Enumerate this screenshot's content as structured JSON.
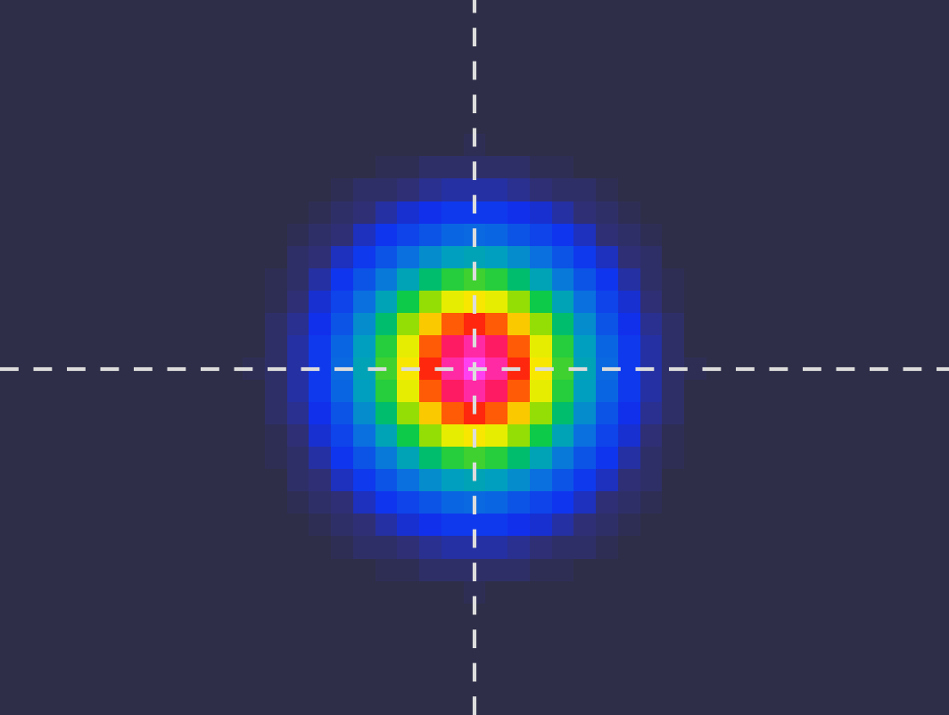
{
  "chart_data": {
    "type": "heatmap",
    "tick_labels": false,
    "cells": [
      [
        0,
        0,
        0,
        0,
        0,
        0,
        0,
        0,
        0,
        0,
        0,
        0,
        0,
        0,
        0,
        0,
        0,
        0,
        0,
        0,
        0,
        0,
        0,
        0,
        0,
        0,
        0,
        0,
        0,
        0,
        0,
        0,
        0,
        0,
        0,
        0,
        0,
        0,
        0,
        0,
        0,
        0,
        0
      ],
      [
        0,
        0,
        0,
        0,
        0,
        0,
        0,
        0,
        0,
        0,
        0,
        0,
        0,
        0,
        0,
        0,
        0,
        0,
        0,
        0,
        0,
        0,
        0,
        0,
        0,
        0,
        0,
        0,
        0,
        0,
        0,
        0,
        0,
        0,
        0,
        0,
        0,
        0,
        0,
        0,
        0,
        0,
        0
      ],
      [
        0,
        0,
        0,
        0,
        0,
        0,
        0,
        0,
        0,
        0,
        0,
        0,
        0,
        0,
        0,
        0,
        0,
        0,
        0,
        0,
        0,
        0,
        0,
        0,
        0,
        0,
        0,
        0,
        0,
        0,
        0,
        0,
        0,
        0,
        0,
        0,
        0,
        0,
        0,
        0,
        0,
        0,
        0
      ],
      [
        0,
        0,
        0,
        0,
        0,
        0,
        0,
        0,
        0,
        0,
        0,
        0,
        0,
        0,
        0,
        0,
        0,
        0,
        0,
        0,
        0,
        0,
        0,
        0,
        0,
        0,
        0,
        0,
        0,
        0,
        0,
        0,
        0,
        0,
        0,
        0,
        0,
        0,
        0,
        0,
        0,
        0,
        0
      ],
      [
        0,
        0,
        0,
        0,
        0,
        0,
        0,
        0,
        0,
        0,
        0,
        0,
        0,
        0,
        0,
        0,
        0,
        0,
        0,
        0,
        0,
        0,
        0,
        0,
        0,
        0,
        0,
        0,
        0,
        0,
        0,
        0,
        0,
        0,
        0,
        0,
        0,
        0,
        0,
        0,
        0,
        0,
        0
      ],
      [
        0,
        0,
        0,
        0,
        0,
        0,
        0,
        0,
        0,
        0,
        0,
        0,
        0,
        0,
        0,
        0,
        0,
        0,
        0,
        0,
        0,
        0,
        0,
        0,
        0,
        0,
        0,
        0,
        0,
        0,
        0,
        0,
        0,
        0,
        0,
        0,
        0,
        0,
        0,
        0,
        0,
        0,
        0
      ],
      [
        0,
        0,
        0,
        0,
        0,
        0,
        0,
        0,
        0,
        0,
        0,
        0,
        0,
        0,
        0,
        0,
        0,
        0,
        0,
        0,
        0,
        1,
        0,
        0,
        0,
        0,
        0,
        0,
        0,
        0,
        0,
        0,
        0,
        0,
        0,
        0,
        0,
        0,
        0,
        0,
        0,
        0,
        0
      ],
      [
        0,
        0,
        0,
        0,
        0,
        0,
        0,
        0,
        0,
        0,
        0,
        0,
        0,
        0,
        0,
        0,
        0,
        1,
        1,
        2,
        2,
        2,
        2,
        2,
        1,
        1,
        0,
        0,
        0,
        0,
        0,
        0,
        0,
        0,
        0,
        0,
        0,
        0,
        0,
        0,
        0,
        0,
        0
      ],
      [
        0,
        0,
        0,
        0,
        0,
        0,
        0,
        0,
        0,
        0,
        0,
        0,
        0,
        0,
        0,
        1,
        2,
        2,
        3,
        4,
        5,
        5,
        5,
        4,
        3,
        2,
        2,
        1,
        0,
        0,
        0,
        0,
        0,
        0,
        0,
        0,
        0,
        0,
        0,
        0,
        0,
        0,
        0
      ],
      [
        0,
        0,
        0,
        0,
        0,
        0,
        0,
        0,
        0,
        0,
        0,
        0,
        0,
        0,
        1,
        2,
        3,
        5,
        7,
        8,
        10,
        10,
        10,
        8,
        7,
        5,
        3,
        2,
        1,
        0,
        0,
        0,
        0,
        0,
        0,
        0,
        0,
        0,
        0,
        0,
        0,
        0,
        0
      ],
      [
        0,
        0,
        0,
        0,
        0,
        0,
        0,
        0,
        0,
        0,
        0,
        0,
        0,
        1,
        2,
        3,
        6,
        9,
        12,
        15,
        18,
        19,
        18,
        15,
        12,
        9,
        6,
        3,
        2,
        1,
        0,
        0,
        0,
        0,
        0,
        0,
        0,
        0,
        0,
        0,
        0,
        0,
        0
      ],
      [
        0,
        0,
        0,
        0,
        0,
        0,
        0,
        0,
        0,
        0,
        0,
        0,
        0,
        2,
        3,
        6,
        10,
        15,
        20,
        26,
        30,
        31,
        30,
        26,
        20,
        15,
        10,
        6,
        3,
        2,
        0,
        0,
        0,
        0,
        0,
        0,
        0,
        0,
        0,
        0,
        0,
        0,
        0
      ],
      [
        0,
        0,
        0,
        0,
        0,
        0,
        0,
        0,
        0,
        0,
        0,
        0,
        1,
        2,
        5,
        9,
        15,
        22,
        31,
        39,
        45,
        47,
        45,
        39,
        31,
        22,
        15,
        9,
        5,
        2,
        1,
        0,
        0,
        0,
        0,
        0,
        0,
        0,
        0,
        0,
        0,
        0,
        0
      ],
      [
        0,
        0,
        0,
        0,
        0,
        0,
        0,
        0,
        0,
        0,
        0,
        0,
        1,
        3,
        7,
        12,
        20,
        31,
        43,
        54,
        63,
        66,
        63,
        54,
        43,
        31,
        20,
        12,
        7,
        3,
        1,
        0,
        0,
        0,
        0,
        0,
        0,
        0,
        0,
        0,
        0,
        0,
        0
      ],
      [
        0,
        0,
        0,
        0,
        0,
        0,
        0,
        0,
        0,
        0,
        0,
        0,
        2,
        4,
        8,
        15,
        26,
        39,
        54,
        69,
        79,
        83,
        79,
        69,
        54,
        39,
        26,
        15,
        8,
        4,
        2,
        0,
        0,
        0,
        0,
        0,
        0,
        0,
        0,
        0,
        0,
        0,
        0
      ],
      [
        0,
        0,
        0,
        0,
        0,
        0,
        0,
        0,
        0,
        0,
        0,
        0,
        2,
        5,
        10,
        18,
        30,
        45,
        63,
        79,
        91,
        95,
        91,
        79,
        63,
        45,
        30,
        18,
        10,
        5,
        2,
        0,
        0,
        0,
        0,
        0,
        0,
        0,
        0,
        0,
        0,
        0,
        0
      ],
      [
        0,
        0,
        0,
        0,
        0,
        0,
        0,
        0,
        0,
        0,
        0,
        1,
        2,
        5,
        10,
        19,
        31,
        47,
        66,
        83,
        95,
        100,
        95,
        83,
        66,
        47,
        31,
        19,
        10,
        5,
        2,
        1,
        0,
        0,
        0,
        0,
        0,
        0,
        0,
        0,
        0,
        0,
        0
      ],
      [
        0,
        0,
        0,
        0,
        0,
        0,
        0,
        0,
        0,
        0,
        0,
        0,
        2,
        5,
        10,
        18,
        30,
        45,
        63,
        79,
        91,
        95,
        91,
        79,
        63,
        45,
        30,
        18,
        10,
        5,
        2,
        0,
        0,
        0,
        0,
        0,
        0,
        0,
        0,
        0,
        0,
        0,
        0
      ],
      [
        0,
        0,
        0,
        0,
        0,
        0,
        0,
        0,
        0,
        0,
        0,
        0,
        2,
        4,
        8,
        15,
        26,
        39,
        54,
        69,
        79,
        83,
        79,
        69,
        54,
        39,
        26,
        15,
        8,
        4,
        2,
        0,
        0,
        0,
        0,
        0,
        0,
        0,
        0,
        0,
        0,
        0,
        0
      ],
      [
        0,
        0,
        0,
        0,
        0,
        0,
        0,
        0,
        0,
        0,
        0,
        0,
        1,
        3,
        7,
        12,
        20,
        31,
        43,
        54,
        63,
        66,
        63,
        54,
        43,
        31,
        20,
        12,
        7,
        3,
        1,
        0,
        0,
        0,
        0,
        0,
        0,
        0,
        0,
        0,
        0,
        0,
        0
      ],
      [
        0,
        0,
        0,
        0,
        0,
        0,
        0,
        0,
        0,
        0,
        0,
        0,
        1,
        2,
        5,
        9,
        15,
        22,
        31,
        39,
        45,
        47,
        45,
        39,
        31,
        22,
        15,
        9,
        5,
        2,
        1,
        0,
        0,
        0,
        0,
        0,
        0,
        0,
        0,
        0,
        0,
        0,
        0
      ],
      [
        0,
        0,
        0,
        0,
        0,
        0,
        0,
        0,
        0,
        0,
        0,
        0,
        0,
        2,
        3,
        6,
        10,
        15,
        20,
        26,
        30,
        31,
        30,
        26,
        20,
        15,
        10,
        6,
        3,
        2,
        0,
        0,
        0,
        0,
        0,
        0,
        0,
        0,
        0,
        0,
        0,
        0,
        0
      ],
      [
        0,
        0,
        0,
        0,
        0,
        0,
        0,
        0,
        0,
        0,
        0,
        0,
        0,
        1,
        2,
        3,
        6,
        9,
        12,
        15,
        18,
        19,
        18,
        15,
        12,
        9,
        6,
        3,
        2,
        1,
        0,
        0,
        0,
        0,
        0,
        0,
        0,
        0,
        0,
        0,
        0,
        0,
        0
      ],
      [
        0,
        0,
        0,
        0,
        0,
        0,
        0,
        0,
        0,
        0,
        0,
        0,
        0,
        0,
        1,
        2,
        3,
        5,
        7,
        8,
        10,
        10,
        10,
        8,
        7,
        5,
        3,
        2,
        1,
        0,
        0,
        0,
        0,
        0,
        0,
        0,
        0,
        0,
        0,
        0,
        0,
        0,
        0
      ],
      [
        0,
        0,
        0,
        0,
        0,
        0,
        0,
        0,
        0,
        0,
        0,
        0,
        0,
        0,
        0,
        1,
        2,
        2,
        3,
        4,
        5,
        5,
        5,
        4,
        3,
        2,
        2,
        1,
        0,
        0,
        0,
        0,
        0,
        0,
        0,
        0,
        0,
        0,
        0,
        0,
        0,
        0,
        0
      ],
      [
        0,
        0,
        0,
        0,
        0,
        0,
        0,
        0,
        0,
        0,
        0,
        0,
        0,
        0,
        0,
        0,
        0,
        1,
        1,
        2,
        2,
        2,
        2,
        2,
        1,
        1,
        0,
        0,
        0,
        0,
        0,
        0,
        0,
        0,
        0,
        0,
        0,
        0,
        0,
        0,
        0,
        0,
        0
      ],
      [
        0,
        0,
        0,
        0,
        0,
        0,
        0,
        0,
        0,
        0,
        0,
        0,
        0,
        0,
        0,
        0,
        0,
        0,
        0,
        0,
        0,
        1,
        0,
        0,
        0,
        0,
        0,
        0,
        0,
        0,
        0,
        0,
        0,
        0,
        0,
        0,
        0,
        0,
        0,
        0,
        0,
        0,
        0
      ],
      [
        0,
        0,
        0,
        0,
        0,
        0,
        0,
        0,
        0,
        0,
        0,
        0,
        0,
        0,
        0,
        0,
        0,
        0,
        0,
        0,
        0,
        0,
        0,
        0,
        0,
        0,
        0,
        0,
        0,
        0,
        0,
        0,
        0,
        0,
        0,
        0,
        0,
        0,
        0,
        0,
        0,
        0,
        0
      ],
      [
        0,
        0,
        0,
        0,
        0,
        0,
        0,
        0,
        0,
        0,
        0,
        0,
        0,
        0,
        0,
        0,
        0,
        0,
        0,
        0,
        0,
        0,
        0,
        0,
        0,
        0,
        0,
        0,
        0,
        0,
        0,
        0,
        0,
        0,
        0,
        0,
        0,
        0,
        0,
        0,
        0,
        0,
        0
      ],
      [
        0,
        0,
        0,
        0,
        0,
        0,
        0,
        0,
        0,
        0,
        0,
        0,
        0,
        0,
        0,
        0,
        0,
        0,
        0,
        0,
        0,
        0,
        0,
        0,
        0,
        0,
        0,
        0,
        0,
        0,
        0,
        0,
        0,
        0,
        0,
        0,
        0,
        0,
        0,
        0,
        0,
        0,
        0
      ],
      [
        0,
        0,
        0,
        0,
        0,
        0,
        0,
        0,
        0,
        0,
        0,
        0,
        0,
        0,
        0,
        0,
        0,
        0,
        0,
        0,
        0,
        0,
        0,
        0,
        0,
        0,
        0,
        0,
        0,
        0,
        0,
        0,
        0,
        0,
        0,
        0,
        0,
        0,
        0,
        0,
        0,
        0,
        0
      ],
      [
        0,
        0,
        0,
        0,
        0,
        0,
        0,
        0,
        0,
        0,
        0,
        0,
        0,
        0,
        0,
        0,
        0,
        0,
        0,
        0,
        0,
        0,
        0,
        0,
        0,
        0,
        0,
        0,
        0,
        0,
        0,
        0,
        0,
        0,
        0,
        0,
        0,
        0,
        0,
        0,
        0,
        0,
        0
      ]
    ]
  }
}
